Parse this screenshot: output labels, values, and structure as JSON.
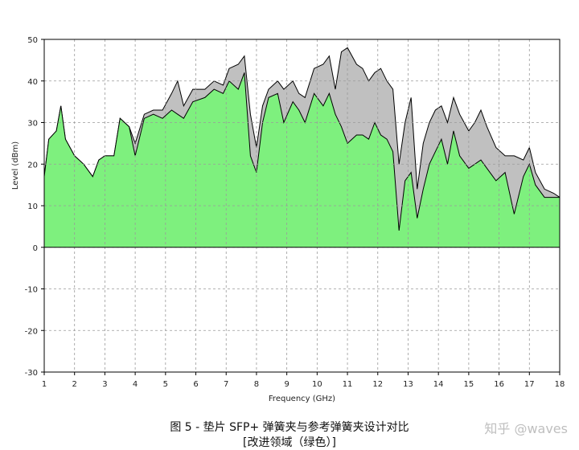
{
  "chart_data": {
    "type": "area",
    "xlabel": "Frequency (GHz)",
    "ylabel": "Level (dBm)",
    "xlim": [
      1,
      18
    ],
    "ylim": [
      -30,
      50
    ],
    "xticks": [
      "1",
      "2",
      "3",
      "4",
      "5",
      "6",
      "7",
      "8",
      "9",
      "10",
      "11",
      "12",
      "13",
      "14",
      "15",
      "16",
      "17",
      "18"
    ],
    "yticks": [
      "50",
      "40",
      "30",
      "20",
      "10",
      "0",
      "-10",
      "-20",
      "-30"
    ],
    "grid": true,
    "series": [
      {
        "name": "",
        "color": "#c0c0c0",
        "points": [
          [
            1,
            17
          ],
          [
            1.15,
            26
          ],
          [
            1.4,
            28
          ],
          [
            1.55,
            34
          ],
          [
            1.7,
            26
          ],
          [
            2.0,
            22
          ],
          [
            2.3,
            20
          ],
          [
            2.6,
            17
          ],
          [
            2.8,
            21
          ],
          [
            3.0,
            22
          ],
          [
            3.3,
            22
          ],
          [
            3.5,
            31
          ],
          [
            3.8,
            29
          ],
          [
            4.0,
            25
          ],
          [
            4.3,
            32
          ],
          [
            4.6,
            33
          ],
          [
            4.9,
            33
          ],
          [
            5.2,
            37
          ],
          [
            5.4,
            40
          ],
          [
            5.6,
            34
          ],
          [
            5.9,
            38
          ],
          [
            6.3,
            38
          ],
          [
            6.6,
            40
          ],
          [
            6.9,
            39
          ],
          [
            7.1,
            43
          ],
          [
            7.4,
            44
          ],
          [
            7.6,
            46
          ],
          [
            7.8,
            32
          ],
          [
            8.0,
            24
          ],
          [
            8.2,
            34
          ],
          [
            8.4,
            38
          ],
          [
            8.7,
            40
          ],
          [
            8.9,
            38
          ],
          [
            9.2,
            40
          ],
          [
            9.4,
            37
          ],
          [
            9.6,
            36
          ],
          [
            9.9,
            43
          ],
          [
            10.2,
            44
          ],
          [
            10.4,
            46
          ],
          [
            10.6,
            38
          ],
          [
            10.8,
            47
          ],
          [
            11.0,
            48
          ],
          [
            11.3,
            44
          ],
          [
            11.5,
            43
          ],
          [
            11.7,
            40
          ],
          [
            11.9,
            42
          ],
          [
            12.1,
            43
          ],
          [
            12.3,
            40
          ],
          [
            12.5,
            38
          ],
          [
            12.7,
            20
          ],
          [
            12.9,
            30
          ],
          [
            13.1,
            36
          ],
          [
            13.3,
            14
          ],
          [
            13.5,
            25
          ],
          [
            13.7,
            30
          ],
          [
            13.9,
            33
          ],
          [
            14.1,
            34
          ],
          [
            14.3,
            30
          ],
          [
            14.5,
            36
          ],
          [
            14.7,
            32
          ],
          [
            15.0,
            28
          ],
          [
            15.2,
            30
          ],
          [
            15.4,
            33
          ],
          [
            15.6,
            29
          ],
          [
            15.9,
            24
          ],
          [
            16.2,
            22
          ],
          [
            16.5,
            22
          ],
          [
            16.8,
            21
          ],
          [
            17.0,
            24
          ],
          [
            17.2,
            18
          ],
          [
            17.5,
            14
          ],
          [
            17.8,
            13
          ],
          [
            18.0,
            12
          ]
        ]
      },
      {
        "name": "",
        "color": "#7ef07e",
        "points": [
          [
            1,
            17
          ],
          [
            1.15,
            26
          ],
          [
            1.4,
            28
          ],
          [
            1.55,
            34
          ],
          [
            1.7,
            26
          ],
          [
            2.0,
            22
          ],
          [
            2.3,
            20
          ],
          [
            2.6,
            17
          ],
          [
            2.8,
            21
          ],
          [
            3.0,
            22
          ],
          [
            3.3,
            22
          ],
          [
            3.5,
            31
          ],
          [
            3.8,
            29
          ],
          [
            4.0,
            22
          ],
          [
            4.3,
            31
          ],
          [
            4.6,
            32
          ],
          [
            4.9,
            31
          ],
          [
            5.2,
            33
          ],
          [
            5.4,
            32
          ],
          [
            5.6,
            31
          ],
          [
            5.9,
            35
          ],
          [
            6.3,
            36
          ],
          [
            6.6,
            38
          ],
          [
            6.9,
            37
          ],
          [
            7.1,
            40
          ],
          [
            7.4,
            38
          ],
          [
            7.6,
            42
          ],
          [
            7.8,
            22
          ],
          [
            8.0,
            18
          ],
          [
            8.2,
            30
          ],
          [
            8.4,
            36
          ],
          [
            8.7,
            37
          ],
          [
            8.9,
            30
          ],
          [
            9.2,
            35
          ],
          [
            9.4,
            33
          ],
          [
            9.6,
            30
          ],
          [
            9.9,
            37
          ],
          [
            10.2,
            34
          ],
          [
            10.4,
            37
          ],
          [
            10.6,
            32
          ],
          [
            10.8,
            29
          ],
          [
            11.0,
            25
          ],
          [
            11.3,
            27
          ],
          [
            11.5,
            27
          ],
          [
            11.7,
            26
          ],
          [
            11.9,
            30
          ],
          [
            12.1,
            27
          ],
          [
            12.3,
            26
          ],
          [
            12.5,
            23
          ],
          [
            12.7,
            4
          ],
          [
            12.9,
            16
          ],
          [
            13.1,
            18
          ],
          [
            13.3,
            7
          ],
          [
            13.5,
            14
          ],
          [
            13.7,
            20
          ],
          [
            13.9,
            23
          ],
          [
            14.1,
            26
          ],
          [
            14.3,
            20
          ],
          [
            14.5,
            28
          ],
          [
            14.7,
            22
          ],
          [
            15.0,
            19
          ],
          [
            15.2,
            20
          ],
          [
            15.4,
            21
          ],
          [
            15.6,
            19
          ],
          [
            15.9,
            16
          ],
          [
            16.2,
            18
          ],
          [
            16.5,
            8
          ],
          [
            16.8,
            17
          ],
          [
            17.0,
            20
          ],
          [
            17.2,
            15
          ],
          [
            17.5,
            12
          ],
          [
            17.8,
            12
          ],
          [
            18.0,
            12
          ]
        ]
      }
    ]
  },
  "caption": {
    "line1": "图 5 - 垫片 SFP+ 弹簧夹与参考弹簧夹设计对比",
    "line2": "[改进领域（绿色）]"
  },
  "watermark": "知乎 @waves"
}
